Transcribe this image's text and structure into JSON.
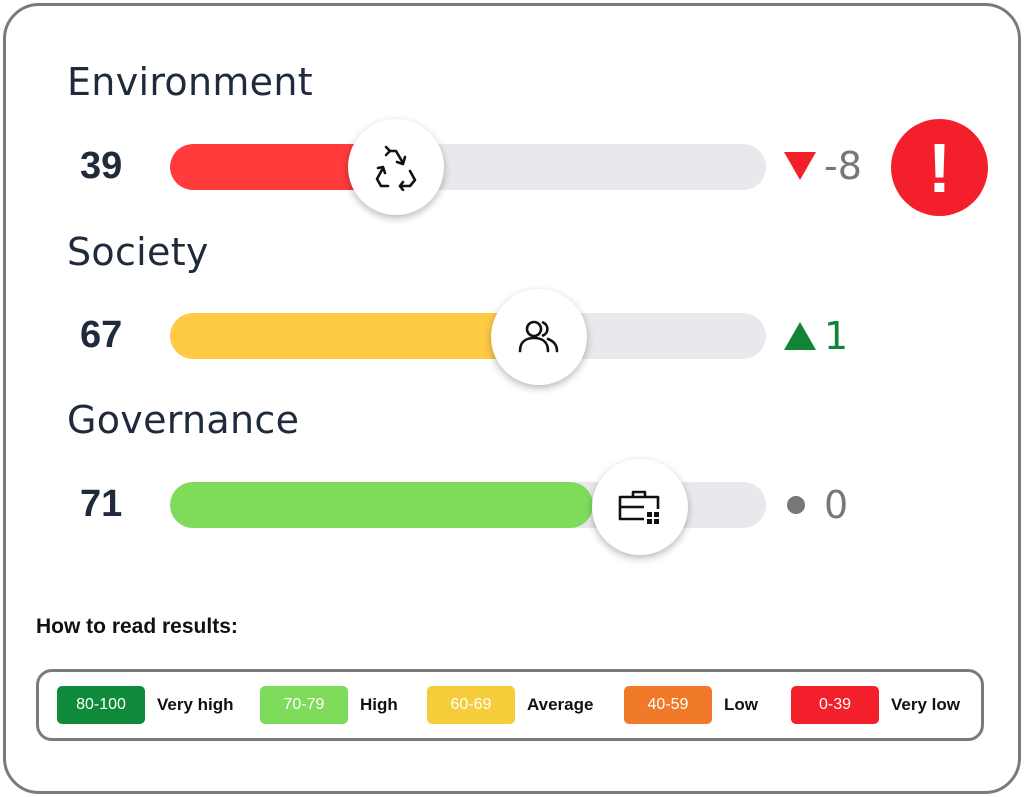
{
  "categories": [
    {
      "title": "Environment",
      "score": "39",
      "score_value": 39,
      "fill_color": "#ff3b3b",
      "icon": "recycle-icon",
      "trend_value": "-8",
      "trend_direction": "down",
      "trend_color": "#f3202b",
      "alert": "!"
    },
    {
      "title": "Society",
      "score": "67",
      "score_value": 67,
      "fill_color": "#ffcb45",
      "icon": "users-icon",
      "trend_value": "1",
      "trend_direction": "up",
      "trend_color": "#128437"
    },
    {
      "title": "Governance",
      "score": "71",
      "score_value": 71,
      "fill_color": "#7fdc5a",
      "icon": "briefcase-icon",
      "trend_value": "0",
      "trend_direction": "neutral",
      "trend_color": "#777777"
    }
  ],
  "legend": {
    "title": "How to read results:",
    "items": [
      {
        "range": "80-100",
        "label": "Very high",
        "color": "#0e8a3a"
      },
      {
        "range": "70-79",
        "label": "High",
        "color": "#7fdc5a"
      },
      {
        "range": "60-69",
        "label": "Average",
        "color": "#f5cd3a"
      },
      {
        "range": "40-59",
        "label": "Low",
        "color": "#f07a2a"
      },
      {
        "range": "0-39",
        "label": "Very low",
        "color": "#f3202b"
      }
    ]
  }
}
